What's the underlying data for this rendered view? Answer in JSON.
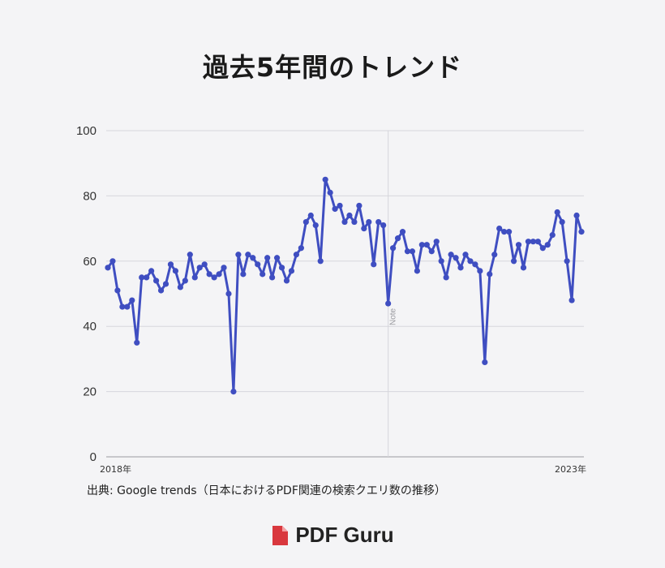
{
  "page": {
    "title": "過去5年間のトレンド",
    "source": "出典: Google trends（日本におけるPDF関連の検索クエリ数の推移）",
    "brand": "PDF Guru"
  },
  "colors": {
    "line": "#3f4ec1",
    "grid": "#d6d6dc",
    "brand_red": "#d9383e",
    "background": "#f4f4f6"
  },
  "chart_data": {
    "type": "line",
    "title": "過去5年間のトレンド",
    "xlabel": "",
    "ylabel": "",
    "x_tick_labels": [
      "2018年",
      "2023年"
    ],
    "ylim": [
      0,
      100
    ],
    "y_ticks": [
      0,
      20,
      40,
      60,
      80,
      100
    ],
    "grid": true,
    "annotations": [
      {
        "label": "Note",
        "at_index": 58
      }
    ],
    "series": [
      {
        "values": [
          58,
          60,
          51,
          46,
          46,
          48,
          35,
          55,
          55,
          57,
          54,
          51,
          53,
          59,
          57,
          52,
          54,
          62,
          55,
          58,
          59,
          56,
          55,
          56,
          58,
          50,
          20,
          62,
          56,
          62,
          61,
          59,
          56,
          61,
          55,
          61,
          58,
          54,
          57,
          62,
          64,
          72,
          74,
          71,
          60,
          85,
          81,
          76,
          77,
          72,
          74,
          72,
          77,
          70,
          72,
          59,
          72,
          71,
          47,
          64,
          67,
          69,
          63,
          63,
          57,
          65,
          65,
          63,
          66,
          60,
          55,
          62,
          61,
          58,
          62,
          60,
          59,
          57,
          29,
          56,
          62,
          70,
          69,
          69,
          60,
          65,
          58,
          66,
          66,
          66,
          64,
          65,
          68,
          75,
          72,
          60,
          48,
          74,
          69
        ]
      }
    ]
  }
}
